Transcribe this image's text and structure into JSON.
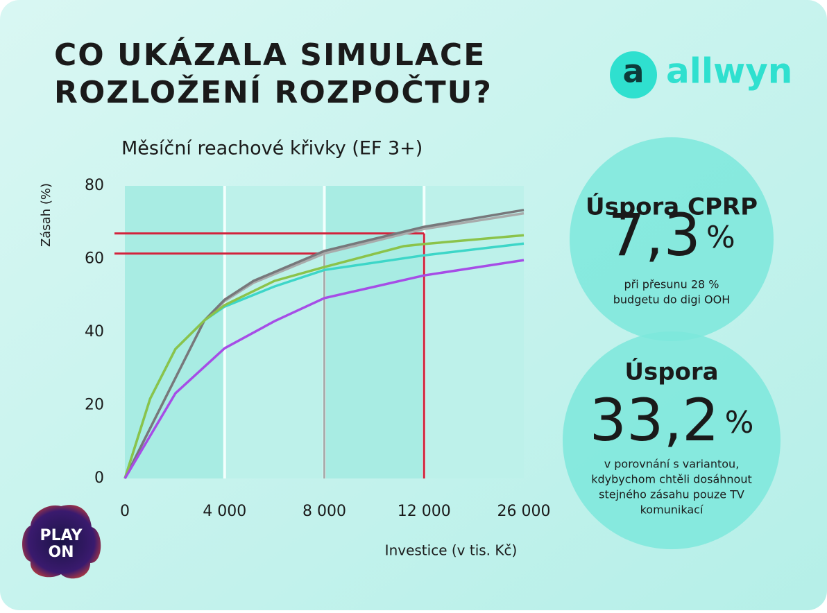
{
  "header": {
    "title": [
      "CO UKÁZALA SIMULACE",
      "ROZLOŽENÍ ROZPOČTU?"
    ],
    "brand": "allwyn",
    "brand_mark": "a",
    "partner": [
      "PLAY",
      "ON"
    ]
  },
  "chart_data": {
    "type": "line",
    "title": "Měsíční reachové křivky (EF 3+)",
    "x_label": "Investice (v tis. Kč)",
    "y_label": "Zásah (%)",
    "xlim": [
      0,
      26000
    ],
    "ylim": [
      0,
      80
    ],
    "xticks": [
      0,
      {
        "value": 4000,
        "label": "4 000"
      },
      {
        "value": 8000,
        "label": "8 000"
      },
      {
        "value": 12000,
        "label": "12 000"
      },
      {
        "value": 26000,
        "label": "26 000"
      }
    ],
    "yticks": [
      0,
      20,
      40,
      60,
      80
    ],
    "grid": true,
    "series": [
      {
        "color": "#a9abab",
        "x": [
          0,
          3188,
          4000,
          5159,
          8000,
          12000,
          26000
        ],
        "values": [
          0,
          43.2,
          48.5,
          53.5,
          61.5,
          68.2,
          72.5
        ]
      },
      {
        "color": "#77787b",
        "x": [
          0,
          3188,
          4000,
          5159,
          8000,
          12000,
          26000
        ],
        "values": [
          0,
          43.2,
          48.9,
          54,
          62.2,
          68.8,
          73.4
        ]
      },
      {
        "color": "#3dd6c8",
        "x": [
          0,
          1014,
          2029,
          3188,
          4000,
          6000,
          8000,
          12000,
          26000
        ],
        "values": [
          0,
          21.8,
          35.4,
          43.2,
          47,
          52.5,
          57,
          61,
          64.2
        ]
      },
      {
        "color": "#8bc34a",
        "x": [
          0,
          1014,
          2029,
          3188,
          4000,
          6000,
          8000,
          11184,
          12000,
          26000
        ],
        "values": [
          0,
          21.8,
          35.4,
          43.2,
          47.4,
          54,
          57.8,
          63.5,
          64.1,
          66.5
        ]
      },
      {
        "color": "#a64de6",
        "x": [
          0,
          2029,
          4000,
          6000,
          8000,
          12000,
          26000
        ],
        "values": [
          0,
          23.3,
          35.6,
          43,
          49.3,
          55.5,
          59.7
        ]
      }
    ],
    "markers": [
      {
        "x": 8000,
        "y": 61.5,
        "v_color": "#a9abab",
        "h_color": "#d2233c"
      },
      {
        "x": 12000,
        "y": 67,
        "v_color": "#d2233c",
        "h_color": "#d2233c"
      }
    ]
  },
  "callouts": [
    {
      "title": "Úspora CPRP",
      "value": "7,3",
      "unit": "%",
      "note": [
        "při přesunu 28 %",
        "budgetu do digi OOH"
      ]
    },
    {
      "title": "Úspora",
      "value": "33,2",
      "unit": "%",
      "note": [
        "v porovnání s variantou,",
        "kdybychom chtěli dosáhnout",
        "stejného zásahu pouze TV",
        "komunikací"
      ]
    }
  ]
}
